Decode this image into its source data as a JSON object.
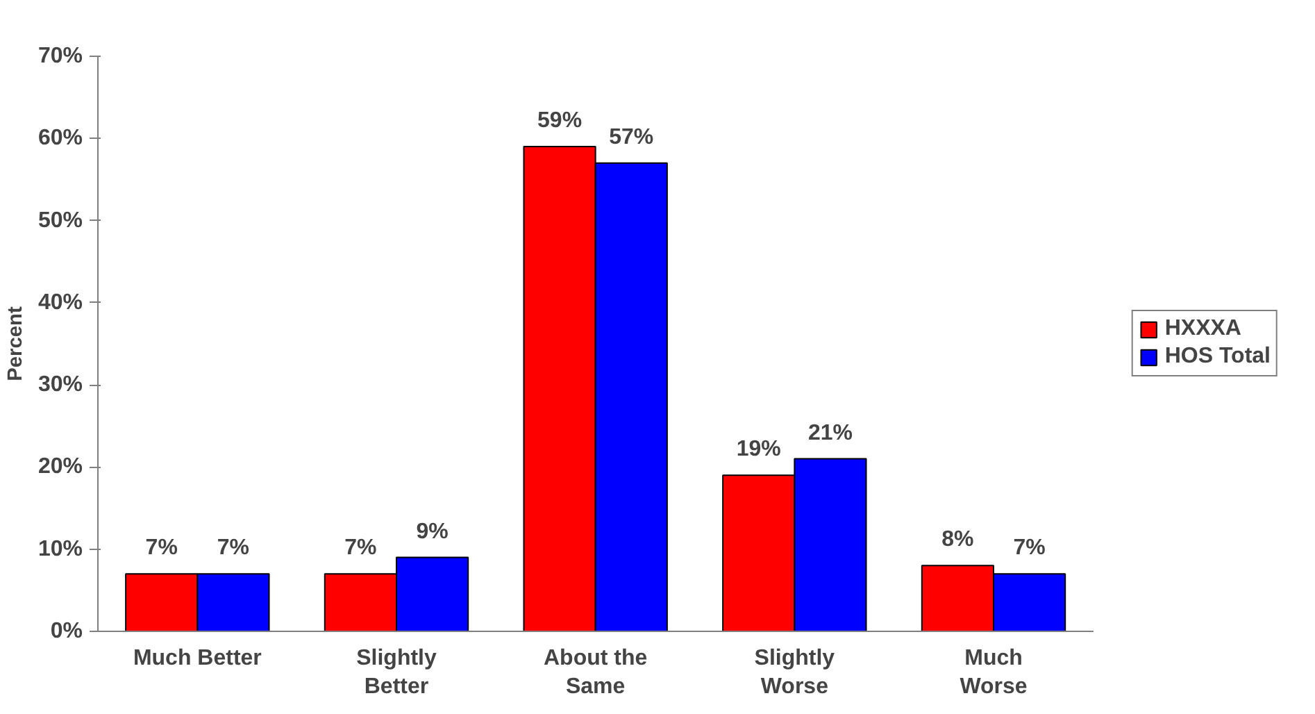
{
  "chart_data": {
    "type": "bar",
    "ylabel": "Percent",
    "categories": [
      "Much Better",
      "Slightly\nBetter",
      "About the\nSame",
      "Slightly\nWorse",
      "Much\nWorse"
    ],
    "series": [
      {
        "name": "HXXXA",
        "color": "#ff0000",
        "values": [
          7,
          7,
          59,
          19,
          8
        ],
        "value_labels": [
          "7%",
          "7%",
          "59%",
          "19%",
          "8%"
        ]
      },
      {
        "name": "HOS Total",
        "color": "#0000ff",
        "values": [
          7,
          9,
          57,
          21,
          7
        ],
        "value_labels": [
          "7%",
          "9%",
          "57%",
          "21%",
          "7%"
        ]
      }
    ],
    "ylim": [
      0,
      70
    ],
    "yticks": [
      {
        "value": 0,
        "label": "0%"
      },
      {
        "value": 10,
        "label": "10%"
      },
      {
        "value": 20,
        "label": "20%"
      },
      {
        "value": 30,
        "label": "30%"
      },
      {
        "value": 40,
        "label": "40%"
      },
      {
        "value": 50,
        "label": "50%"
      },
      {
        "value": 60,
        "label": "60%"
      },
      {
        "value": 70,
        "label": "70%"
      }
    ],
    "grid": false,
    "legend": "right"
  }
}
